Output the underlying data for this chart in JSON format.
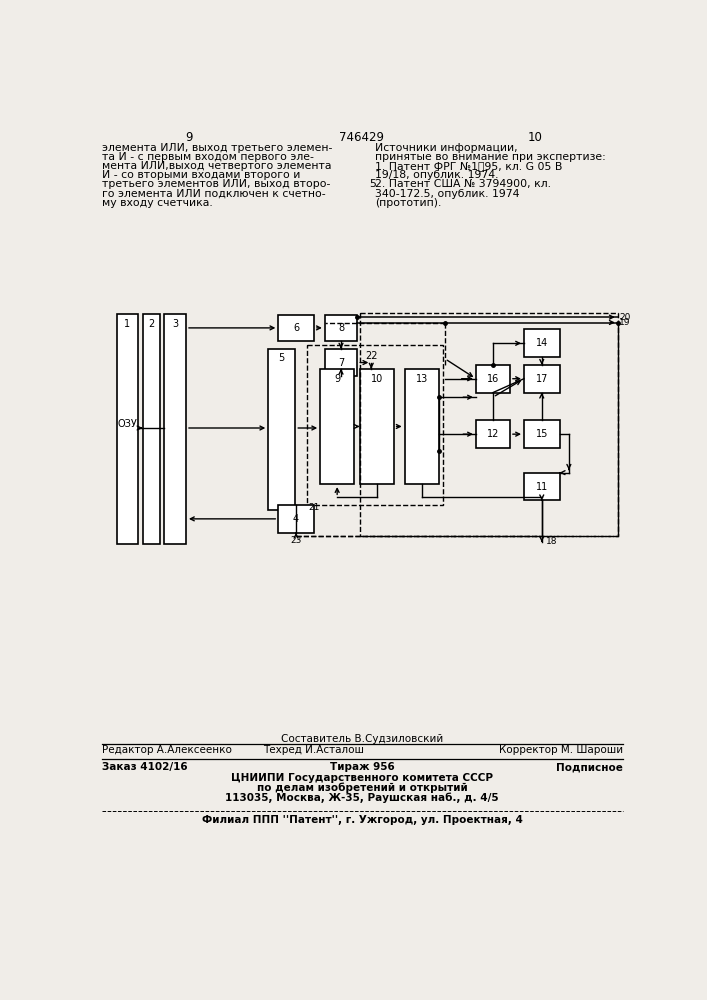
{
  "bg_color": "#f0ede8",
  "page_left": "9",
  "page_center": "746429",
  "page_right": "10",
  "left_col_lines": [
    "элемента ИЛИ, выход третьего элемен-",
    "та И - с первым входом первого эле-",
    "мента ИЛИ,выход четвертого элемента",
    "И - со вторыми входами второго и",
    "третьего элементов ИЛИ, выход второ-",
    "го элемента ИЛИ подключен к счетно-",
    "му входу счетчика."
  ],
  "right_col_lines": [
    [
      "",
      "Источники информации,"
    ],
    [
      "",
      "принятые во внимание при экспертизе:"
    ],
    [
      "",
      "1. Патент ФРГ №1㔥95, кл. G 05 В"
    ],
    [
      "",
      "19/18, опублик. 1974."
    ],
    [
      "5",
      "2. Патент США № 3794900, кл."
    ],
    [
      "",
      "340-172.5, опублик. 1974"
    ],
    [
      "",
      "(прототип)."
    ]
  ],
  "footer_author": "Составитель В.Судзиловский",
  "footer_editor": "Редактор А.Алексеенко",
  "footer_tech": "Техред И.Асталош",
  "footer_corrector": "Корректор М. Шароши",
  "footer_order": "Заказ 4102/16",
  "footer_tirazh": "Тираж 956",
  "footer_podp": "Подписное",
  "footer_org1": "ЦНИИПИ Государственного комитета СССР",
  "footer_org2": "по делам изобретений и открытий",
  "footer_org3": "113035, Москва, Ж-35, Раушская наб., д. 4/5",
  "footer_branch": "Филиал ППП ''Патент'', г. Ужгород, ул. Проектная, 4"
}
